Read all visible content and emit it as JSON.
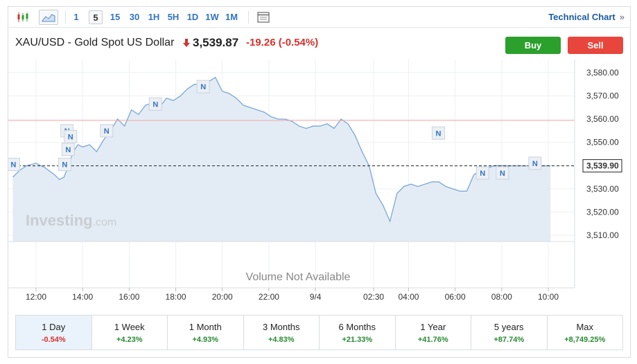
{
  "toolbar": {
    "timeframes": [
      "1",
      "5",
      "15",
      "30",
      "1H",
      "5H",
      "1D",
      "1W",
      "1M"
    ],
    "active_timeframe": "5",
    "technical_chart_label": "Technical Chart",
    "technical_chart_chevron": "»",
    "icons": [
      "candlestick-icon",
      "area-chart-icon",
      "calendar-icon"
    ]
  },
  "header": {
    "symbol": "XAU/USD - Gold Spot US Dollar",
    "price": "3,539.87",
    "change": "-19.26",
    "change_pct": "(-0.54%)",
    "buy_label": "Buy",
    "sell_label": "Sell"
  },
  "colors": {
    "down": "#d4322c",
    "up": "#27892f",
    "line": "#7aa7d4",
    "area": "#e3ecf5",
    "buy": "#2ca02c",
    "sell": "#e8453c",
    "prev_close_line": "#f2a6a6"
  },
  "chart_data": {
    "type": "area",
    "y_ticks": [
      "3,580.00",
      "3,570.00",
      "3,560.00",
      "3,550.00",
      "3,540.00",
      "3,530.00",
      "3,520.00",
      "3,510.00"
    ],
    "ylim": [
      3506,
      3584
    ],
    "x_ticks": [
      "12:00",
      "14:00",
      "16:00",
      "18:00",
      "20:00",
      "22:00",
      "9/4",
      "02:30",
      "04:00",
      "06:00",
      "08:00",
      "10:00"
    ],
    "current_price_label": "3,539.90",
    "current_price": 3539.9,
    "prev_close": 3559.4,
    "watermark": "Investing",
    "watermark_suffix": ".com",
    "volume_text": "Volume Not Available",
    "news_marker_label": "N",
    "news_markers": [
      {
        "t": 11.0,
        "price": 3540.5
      },
      {
        "t": 13.2,
        "price": 3540.5
      },
      {
        "t": 13.3,
        "price": 3555.0
      },
      {
        "t": 13.45,
        "price": 3552.5
      },
      {
        "t": 13.35,
        "price": 3547.0
      },
      {
        "t": 15.0,
        "price": 3555.0
      },
      {
        "t": 17.1,
        "price": 3566.5
      },
      {
        "t": 19.15,
        "price": 3574.0
      },
      {
        "t": 29.25,
        "price": 3554.0
      },
      {
        "t": 31.15,
        "price": 3536.8
      },
      {
        "t": 32.0,
        "price": 3536.8
      },
      {
        "t": 33.4,
        "price": 3541.0
      }
    ],
    "series": [
      {
        "x": [
          11.0,
          11.3,
          11.6,
          12.0,
          12.4,
          12.8,
          13.0,
          13.2,
          13.4,
          13.6,
          13.8,
          14.0,
          14.3,
          14.6,
          14.9,
          15.2,
          15.5,
          15.8,
          16.1,
          16.4,
          16.7,
          17.0,
          17.3,
          17.6,
          17.9,
          18.2,
          18.5,
          18.8,
          19.1,
          19.4,
          19.7,
          20.0,
          20.3,
          20.6,
          20.9,
          21.2,
          21.5,
          21.8,
          22.1,
          22.4,
          22.7,
          23.0,
          23.3,
          23.6,
          23.9,
          24.2,
          24.5,
          24.8,
          25.1,
          25.4,
          25.7,
          26.0,
          26.3,
          26.6,
          26.9,
          27.2,
          27.5,
          27.8,
          28.1,
          28.4,
          28.7,
          29.0,
          29.3,
          29.6,
          29.9,
          30.2,
          30.5,
          30.8,
          31.1,
          31.4,
          31.7,
          32.0,
          32.3,
          32.6,
          32.9,
          33.2,
          33.5,
          33.8,
          34.1
        ],
        "y": [
          3535,
          3538,
          3540,
          3541,
          3539,
          3536,
          3534,
          3535,
          3540,
          3546,
          3549,
          3548,
          3549,
          3546,
          3551,
          3555,
          3560,
          3557,
          3564,
          3562,
          3566,
          3567,
          3565,
          3569,
          3568,
          3570,
          3573,
          3575,
          3575,
          3576,
          3578,
          3572,
          3571,
          3569,
          3566,
          3565,
          3564,
          3563,
          3561,
          3560,
          3560,
          3559,
          3557,
          3556,
          3557,
          3557,
          3558,
          3556,
          3560,
          3558,
          3553,
          3546,
          3540,
          3528,
          3523,
          3516,
          3528,
          3531,
          3532,
          3531,
          3532,
          3533,
          3533,
          3531,
          3530,
          3529,
          3529,
          3536,
          3538,
          3539,
          3540,
          3540,
          3539.9,
          3539.9,
          3539.9,
          3539.9,
          3539.9,
          3539.9,
          3539.9
        ]
      }
    ]
  },
  "periods": [
    {
      "label": "1 Day",
      "value": "-0.54%",
      "dir": "neg"
    },
    {
      "label": "1 Week",
      "value": "+4.23%",
      "dir": "pos"
    },
    {
      "label": "1 Month",
      "value": "+4.93%",
      "dir": "pos"
    },
    {
      "label": "3 Months",
      "value": "+4.83%",
      "dir": "pos"
    },
    {
      "label": "6 Months",
      "value": "+21.33%",
      "dir": "pos"
    },
    {
      "label": "1 Year",
      "value": "+41.76%",
      "dir": "pos"
    },
    {
      "label": "5 years",
      "value": "+87.74%",
      "dir": "pos"
    },
    {
      "label": "Max",
      "value": "+8,749.25%",
      "dir": "pos"
    }
  ]
}
